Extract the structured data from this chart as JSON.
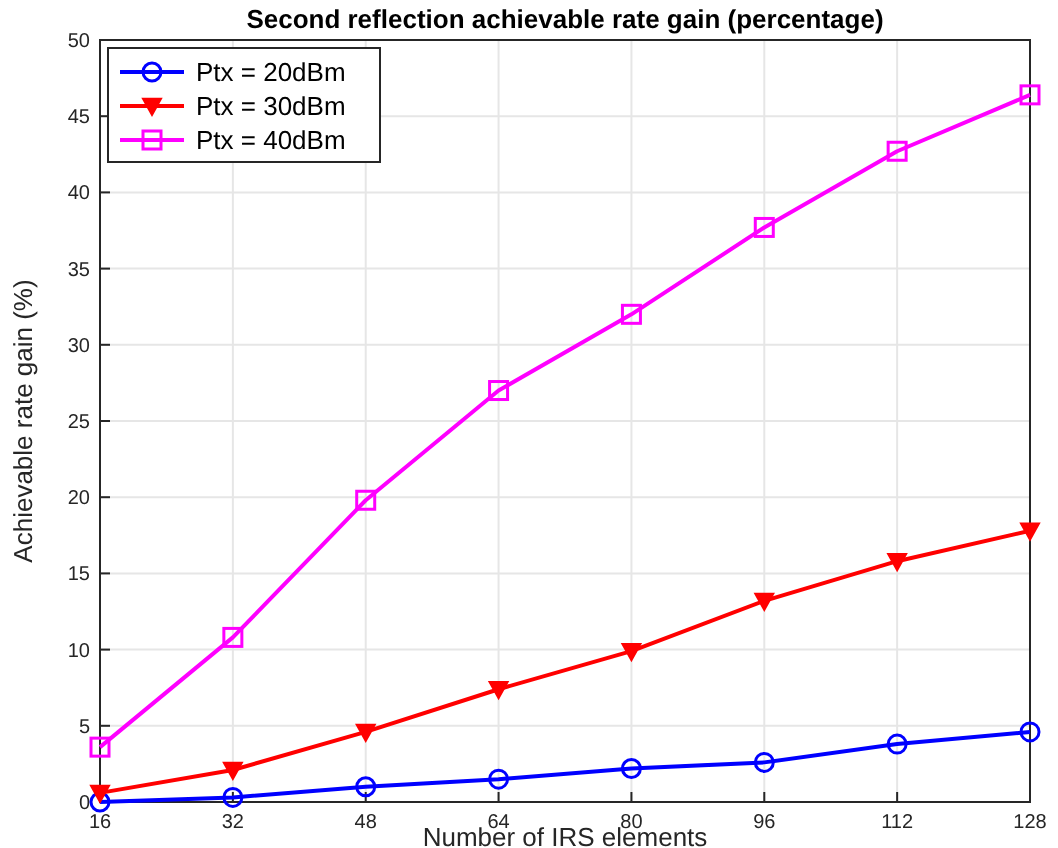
{
  "chart_data": {
    "type": "line",
    "title": "Second reflection achievable rate gain (percentage)",
    "xlabel": "Number of IRS elements",
    "ylabel": "Achievable rate gain (%)",
    "x": [
      16,
      32,
      48,
      64,
      80,
      96,
      112,
      128
    ],
    "series": [
      {
        "name": "Ptx = 20dBm",
        "color": "#0000ff",
        "marker": "circle",
        "values": [
          0,
          0.3,
          1.0,
          1.5,
          2.2,
          2.6,
          3.8,
          4.6
        ]
      },
      {
        "name": "Ptx = 30dBm",
        "color": "#ff0000",
        "marker": "triangle",
        "values": [
          0.6,
          2.1,
          4.6,
          7.4,
          9.9,
          13.2,
          15.8,
          17.8
        ]
      },
      {
        "name": "Ptx = 40dBm",
        "color": "#ff00ff",
        "marker": "square",
        "values": [
          3.6,
          10.8,
          19.8,
          27.0,
          32.0,
          37.7,
          42.7,
          46.4
        ]
      }
    ],
    "xlim": [
      16,
      128
    ],
    "xticks": [
      16,
      32,
      48,
      64,
      80,
      96,
      112,
      128
    ],
    "ylim": [
      0,
      50
    ],
    "yticks": [
      0,
      5,
      10,
      15,
      20,
      25,
      30,
      35,
      40,
      45,
      50
    ],
    "grid": true,
    "legend": "top left",
    "line_style": "solid"
  }
}
